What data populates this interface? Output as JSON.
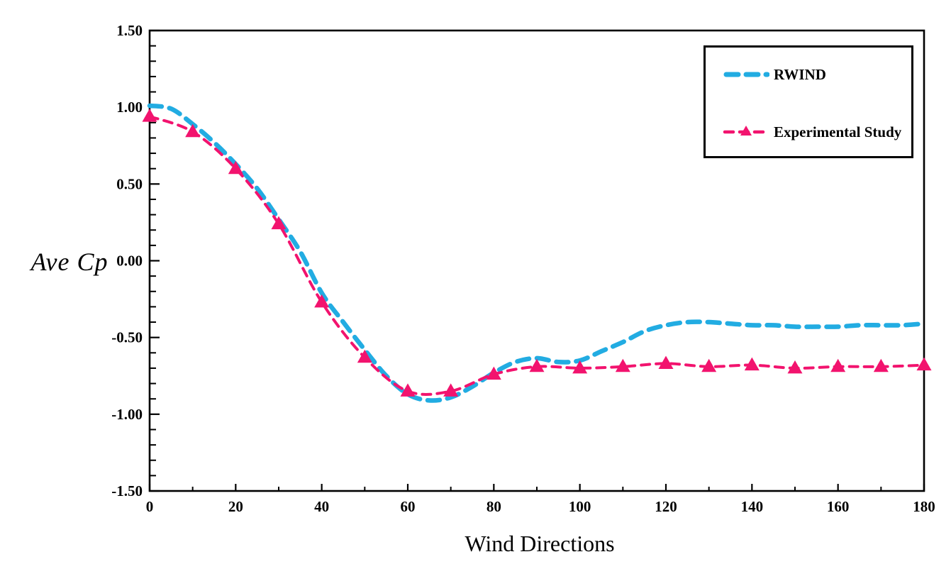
{
  "figure": {
    "background": "#ffffff",
    "axis_color": "#000000",
    "text_color": "#000000"
  },
  "chart_data": {
    "type": "line",
    "title": "",
    "xlabel": "Wind Directions",
    "ylabel": "Ave Cp",
    "xlim": [
      0,
      180
    ],
    "ylim": [
      -1.5,
      1.5
    ],
    "grid": false,
    "legend_position": "top-right",
    "x_major_ticks": [
      0,
      20,
      40,
      60,
      80,
      100,
      120,
      140,
      160,
      180
    ],
    "x_minor_step": 10,
    "y_major_ticks": [
      {
        "value": 1.5,
        "label": "1.50"
      },
      {
        "value": 1.0,
        "label": "1.00"
      },
      {
        "value": 0.5,
        "label": "0.50"
      },
      {
        "value": 0.0,
        "label": "0.00"
      },
      {
        "value": -0.5,
        "label": "-0.50"
      },
      {
        "value": -1.0,
        "label": "-1.00"
      },
      {
        "value": -1.5,
        "label": "-1.50"
      }
    ],
    "y_minor_step": 0.1,
    "series": [
      {
        "name": "RWIND",
        "color": "#22ACE2",
        "line_style": "dashed",
        "marker": "none",
        "x": [
          0,
          5,
          10,
          15,
          20,
          25,
          30,
          35,
          40,
          45,
          50,
          55,
          60,
          65,
          70,
          75,
          80,
          85,
          90,
          95,
          100,
          105,
          110,
          115,
          120,
          125,
          130,
          135,
          140,
          145,
          150,
          155,
          160,
          165,
          170,
          175,
          180
        ],
        "y": [
          1.01,
          0.99,
          0.89,
          0.77,
          0.63,
          0.47,
          0.27,
          0.06,
          -0.21,
          -0.4,
          -0.58,
          -0.75,
          -0.87,
          -0.91,
          -0.89,
          -0.82,
          -0.73,
          -0.66,
          -0.635,
          -0.66,
          -0.65,
          -0.59,
          -0.53,
          -0.46,
          -0.42,
          -0.4,
          -0.4,
          -0.41,
          -0.42,
          -0.42,
          -0.43,
          -0.43,
          -0.43,
          -0.42,
          -0.42,
          -0.42,
          -0.41
        ]
      },
      {
        "name": "Experimental Study",
        "color": "#F2136E",
        "line_style": "dashed",
        "marker": "triangle",
        "x": [
          0,
          10,
          20,
          30,
          40,
          50,
          60,
          70,
          80,
          90,
          100,
          110,
          120,
          130,
          140,
          150,
          160,
          170,
          180
        ],
        "y": [
          0.94,
          0.84,
          0.6,
          0.24,
          -0.27,
          -0.63,
          -0.85,
          -0.85,
          -0.74,
          -0.69,
          -0.7,
          -0.69,
          -0.67,
          -0.69,
          -0.68,
          -0.7,
          -0.69,
          -0.69,
          -0.68
        ]
      }
    ]
  }
}
